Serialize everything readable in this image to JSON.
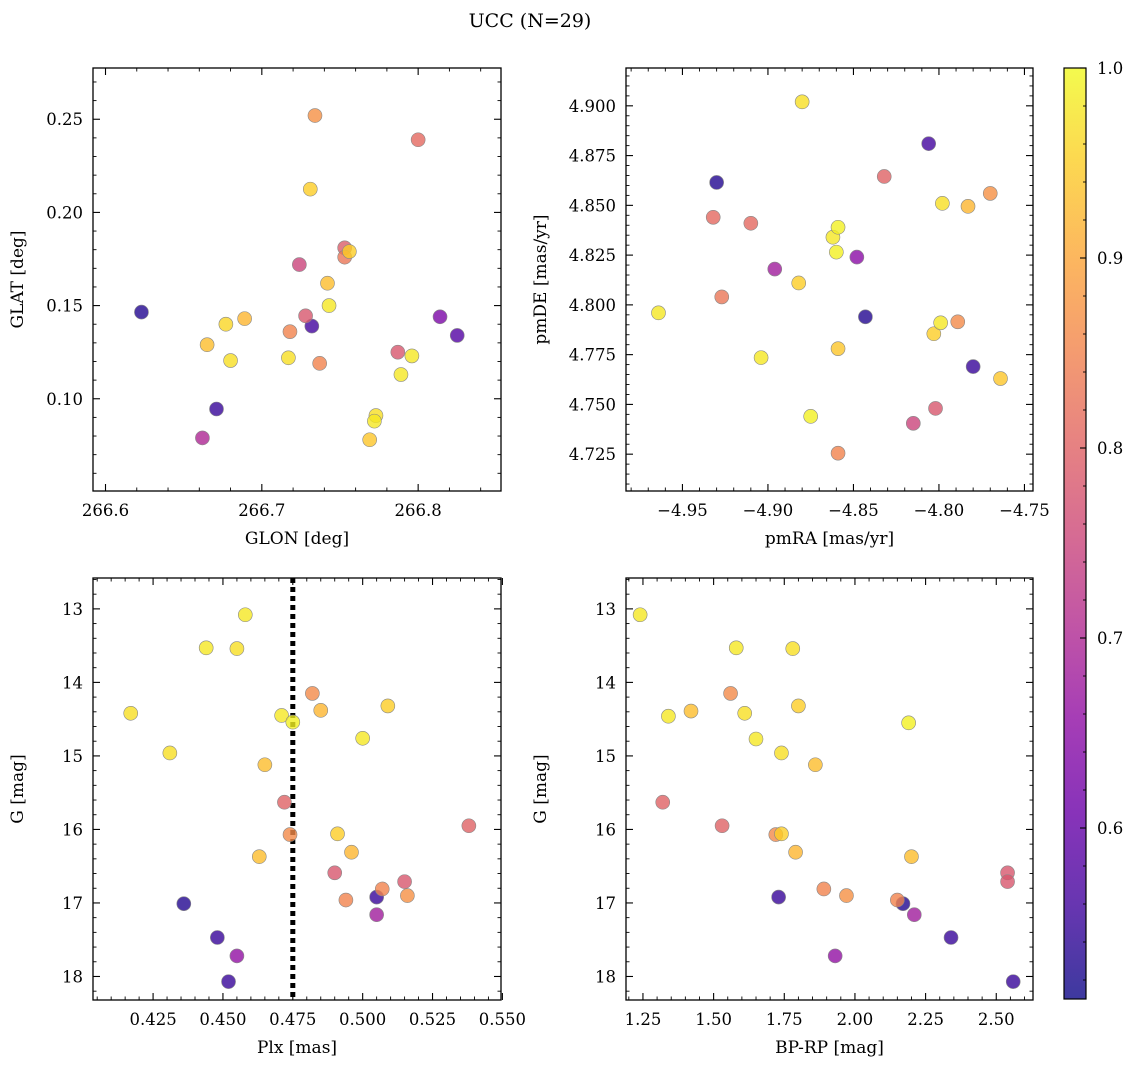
{
  "figure": {
    "title": "UCC (N=29)"
  },
  "colorbar": {
    "range": [
      0.51,
      1.0
    ],
    "ticks": [
      0.6,
      0.7,
      0.8,
      0.9,
      1.0
    ],
    "ticklabels": [
      "0.6",
      "0.7",
      "0.8",
      "0.9",
      "1.0"
    ],
    "colormap": "plasma"
  },
  "chart_data": [
    {
      "type": "scatter",
      "xlabel": "GLON [deg]",
      "ylabel": "GLAT [deg]",
      "xlim": [
        266.592,
        266.853
      ],
      "ylim": [
        0.0505,
        0.2775
      ],
      "xticks": [
        266.6,
        266.7,
        266.8
      ],
      "xticklabels": [
        "266.6",
        "266.7",
        "266.8"
      ],
      "yticks": [
        0.1,
        0.15,
        0.2,
        0.25
      ],
      "yticklabels": [
        "0.10",
        "0.15",
        "0.20",
        "0.25"
      ],
      "inverted_y": false,
      "vline": null,
      "points": [
        [
          266.623,
          0.1465,
          0.53
        ],
        [
          266.671,
          0.0945,
          0.55
        ],
        [
          266.662,
          0.079,
          0.7
        ],
        [
          266.665,
          0.129,
          0.93
        ],
        [
          266.677,
          0.14,
          0.96
        ],
        [
          266.68,
          0.1205,
          0.97
        ],
        [
          266.689,
          0.143,
          0.92
        ],
        [
          266.718,
          0.136,
          0.85
        ],
        [
          266.717,
          0.122,
          0.97
        ],
        [
          266.724,
          0.172,
          0.75
        ],
        [
          266.728,
          0.1445,
          0.78
        ],
        [
          266.732,
          0.139,
          0.56
        ],
        [
          266.731,
          0.2125,
          0.95
        ],
        [
          266.734,
          0.252,
          0.87
        ],
        [
          266.737,
          0.119,
          0.85
        ],
        [
          266.742,
          0.162,
          0.93
        ],
        [
          266.743,
          0.15,
          0.98
        ],
        [
          266.753,
          0.181,
          0.79
        ],
        [
          266.753,
          0.176,
          0.83
        ],
        [
          266.756,
          0.179,
          0.95
        ],
        [
          266.769,
          0.078,
          0.94
        ],
        [
          266.773,
          0.091,
          0.97
        ],
        [
          266.772,
          0.088,
          0.98
        ],
        [
          266.787,
          0.125,
          0.78
        ],
        [
          266.789,
          0.113,
          0.98
        ],
        [
          266.796,
          0.123,
          0.98
        ],
        [
          266.8,
          0.239,
          0.81
        ],
        [
          266.814,
          0.144,
          0.63
        ],
        [
          266.825,
          0.134,
          0.58
        ]
      ]
    },
    {
      "type": "scatter",
      "xlabel": "pmRA [mas/yr]",
      "ylabel": "pmDE [mas/yr]",
      "xlim": [
        -4.983,
        -4.745
      ],
      "ylim": [
        4.7065,
        4.919
      ],
      "xticks": [
        -4.95,
        -4.9,
        -4.85,
        -4.8,
        -4.75
      ],
      "xticklabels": [
        "−4.95",
        "−4.90",
        "−4.85",
        "−4.80",
        "−4.75"
      ],
      "yticks": [
        4.725,
        4.75,
        4.775,
        4.8,
        4.825,
        4.85,
        4.875,
        4.9
      ],
      "yticklabels": [
        "4.725",
        "4.750",
        "4.775",
        "4.800",
        "4.825",
        "4.850",
        "4.875",
        "4.900"
      ],
      "inverted_y": false,
      "vline": null,
      "points": [
        [
          -4.964,
          4.796,
          0.98
        ],
        [
          -4.93,
          4.8615,
          0.53
        ],
        [
          -4.932,
          4.844,
          0.81
        ],
        [
          -4.927,
          4.804,
          0.83
        ],
        [
          -4.91,
          4.841,
          0.81
        ],
        [
          -4.904,
          4.7735,
          0.98
        ],
        [
          -4.896,
          4.818,
          0.68
        ],
        [
          -4.882,
          4.811,
          0.95
        ],
        [
          -4.88,
          4.902,
          0.97
        ],
        [
          -4.875,
          4.744,
          0.99
        ],
        [
          -4.862,
          4.834,
          0.98
        ],
        [
          -4.86,
          4.8265,
          0.99
        ],
        [
          -4.859,
          4.839,
          0.99
        ],
        [
          -4.859,
          4.778,
          0.94
        ],
        [
          -4.859,
          4.7255,
          0.85
        ],
        [
          -4.848,
          4.824,
          0.65
        ],
        [
          -4.843,
          4.794,
          0.53
        ],
        [
          -4.832,
          4.8645,
          0.8
        ],
        [
          -4.815,
          4.7405,
          0.75
        ],
        [
          -4.806,
          4.881,
          0.56
        ],
        [
          -4.803,
          4.7855,
          0.95
        ],
        [
          -4.802,
          4.748,
          0.78
        ],
        [
          -4.799,
          4.791,
          0.98
        ],
        [
          -4.798,
          4.851,
          0.97
        ],
        [
          -4.783,
          4.8495,
          0.92
        ],
        [
          -4.789,
          4.7915,
          0.86
        ],
        [
          -4.78,
          4.769,
          0.55
        ],
        [
          -4.77,
          4.856,
          0.87
        ],
        [
          -4.764,
          4.763,
          0.94
        ]
      ]
    },
    {
      "type": "scatter",
      "xlabel": "Plx [mas]",
      "ylabel": "G [mag]",
      "xlim": [
        0.4035,
        0.5495
      ],
      "ylim": [
        18.32,
        12.58
      ],
      "xticks": [
        0.425,
        0.45,
        0.475,
        0.5,
        0.525,
        0.55
      ],
      "xticklabels": [
        "0.425",
        "0.450",
        "0.475",
        "0.500",
        "0.525",
        "0.550"
      ],
      "yticks": [
        13,
        14,
        15,
        16,
        17,
        18
      ],
      "yticklabels": [
        "13",
        "14",
        "15",
        "16",
        "17",
        "18"
      ],
      "inverted_y": true,
      "vline": 0.475,
      "points": [
        [
          0.417,
          14.42,
          0.97
        ],
        [
          0.431,
          14.96,
          0.97
        ],
        [
          0.436,
          17.01,
          0.53
        ],
        [
          0.444,
          13.53,
          0.98
        ],
        [
          0.448,
          17.47,
          0.55
        ],
        [
          0.452,
          18.07,
          0.55
        ],
        [
          0.455,
          13.54,
          0.97
        ],
        [
          0.455,
          17.72,
          0.66
        ],
        [
          0.458,
          13.08,
          0.98
        ],
        [
          0.463,
          16.37,
          0.93
        ],
        [
          0.465,
          15.12,
          0.93
        ],
        [
          0.471,
          14.45,
          0.98
        ],
        [
          0.472,
          15.63,
          0.8
        ],
        [
          0.474,
          16.07,
          0.86
        ],
        [
          0.475,
          14.54,
          0.99
        ],
        [
          0.482,
          14.15,
          0.86
        ],
        [
          0.485,
          14.38,
          0.92
        ],
        [
          0.49,
          16.59,
          0.78
        ],
        [
          0.491,
          16.06,
          0.95
        ],
        [
          0.494,
          16.96,
          0.85
        ],
        [
          0.496,
          16.31,
          0.92
        ],
        [
          0.5,
          14.76,
          0.98
        ],
        [
          0.505,
          16.92,
          0.55
        ],
        [
          0.505,
          17.16,
          0.68
        ],
        [
          0.507,
          16.81,
          0.85
        ],
        [
          0.509,
          14.32,
          0.95
        ],
        [
          0.515,
          16.71,
          0.78
        ],
        [
          0.516,
          16.9,
          0.87
        ],
        [
          0.538,
          15.95,
          0.8
        ]
      ]
    },
    {
      "type": "scatter",
      "xlabel": "BP-RP [mag]",
      "ylabel": "G [mag]",
      "xlim": [
        1.19,
        2.63
      ],
      "ylim": [
        18.32,
        12.58
      ],
      "xticks": [
        1.25,
        1.5,
        1.75,
        2.0,
        2.25,
        2.5
      ],
      "xticklabels": [
        "1.25",
        "1.50",
        "1.75",
        "2.00",
        "2.25",
        "2.50"
      ],
      "yticks": [
        13,
        14,
        15,
        16,
        17,
        18
      ],
      "yticklabels": [
        "13",
        "14",
        "15",
        "16",
        "17",
        "18"
      ],
      "inverted_y": true,
      "vline": null,
      "points": [
        [
          1.24,
          13.08,
          0.98
        ],
        [
          1.32,
          15.63,
          0.8
        ],
        [
          1.34,
          14.46,
          0.98
        ],
        [
          1.42,
          14.39,
          0.93
        ],
        [
          1.53,
          15.95,
          0.8
        ],
        [
          1.56,
          14.15,
          0.86
        ],
        [
          1.58,
          13.53,
          0.98
        ],
        [
          1.61,
          14.42,
          0.97
        ],
        [
          1.65,
          14.77,
          0.98
        ],
        [
          1.72,
          16.07,
          0.86
        ],
        [
          1.73,
          16.92,
          0.55
        ],
        [
          1.74,
          16.06,
          0.95
        ],
        [
          1.74,
          14.96,
          0.97
        ],
        [
          1.78,
          13.54,
          0.97
        ],
        [
          1.79,
          16.31,
          0.92
        ],
        [
          1.8,
          14.32,
          0.95
        ],
        [
          1.86,
          15.12,
          0.93
        ],
        [
          1.89,
          16.81,
          0.85
        ],
        [
          1.93,
          17.72,
          0.66
        ],
        [
          1.97,
          16.9,
          0.87
        ],
        [
          2.15,
          16.96,
          0.85
        ],
        [
          2.17,
          17.01,
          0.53
        ],
        [
          2.19,
          14.55,
          0.99
        ],
        [
          2.2,
          16.37,
          0.93
        ],
        [
          2.21,
          17.16,
          0.68
        ],
        [
          2.34,
          17.47,
          0.55
        ],
        [
          2.54,
          16.59,
          0.78
        ],
        [
          2.54,
          16.71,
          0.78
        ],
        [
          2.56,
          18.07,
          0.55
        ]
      ]
    }
  ]
}
